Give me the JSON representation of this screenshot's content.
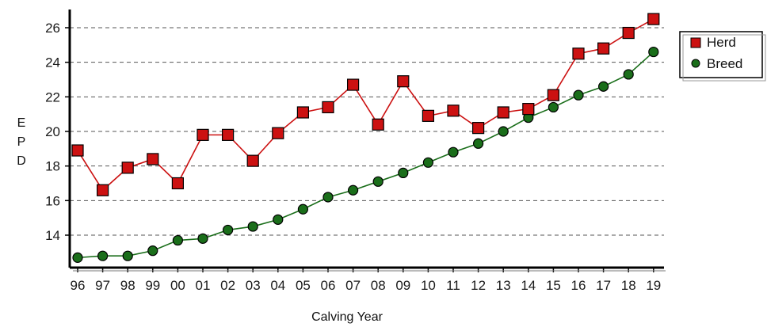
{
  "chart_data": {
    "type": "line",
    "xlabel": "Calving Year",
    "ylabel": "EPD",
    "x": [
      "96",
      "97",
      "98",
      "99",
      "00",
      "01",
      "02",
      "03",
      "04",
      "05",
      "06",
      "07",
      "08",
      "09",
      "10",
      "11",
      "12",
      "13",
      "14",
      "15",
      "16",
      "17",
      "18",
      "19"
    ],
    "ylim": [
      12.5,
      27
    ],
    "yticks": [
      14,
      16,
      18,
      20,
      22,
      24,
      26
    ],
    "grid": true,
    "legend_position": "top-right",
    "series": [
      {
        "name": "Herd",
        "color": "#cc1111",
        "marker": "square",
        "values": [
          18.9,
          16.6,
          17.9,
          18.4,
          17.0,
          19.8,
          19.8,
          18.3,
          19.9,
          21.1,
          21.4,
          22.7,
          20.4,
          22.9,
          20.9,
          21.2,
          20.2,
          21.1,
          21.3,
          22.1,
          24.5,
          24.8,
          25.7,
          26.5
        ]
      },
      {
        "name": "Breed",
        "color": "#1a6e1a",
        "marker": "circle",
        "values": [
          12.7,
          12.8,
          12.8,
          13.1,
          13.7,
          13.8,
          14.3,
          14.5,
          14.9,
          15.5,
          16.2,
          16.6,
          17.1,
          17.6,
          18.2,
          18.8,
          19.3,
          20.0,
          20.8,
          21.4,
          22.1,
          22.6,
          23.3,
          24.6
        ]
      }
    ]
  }
}
